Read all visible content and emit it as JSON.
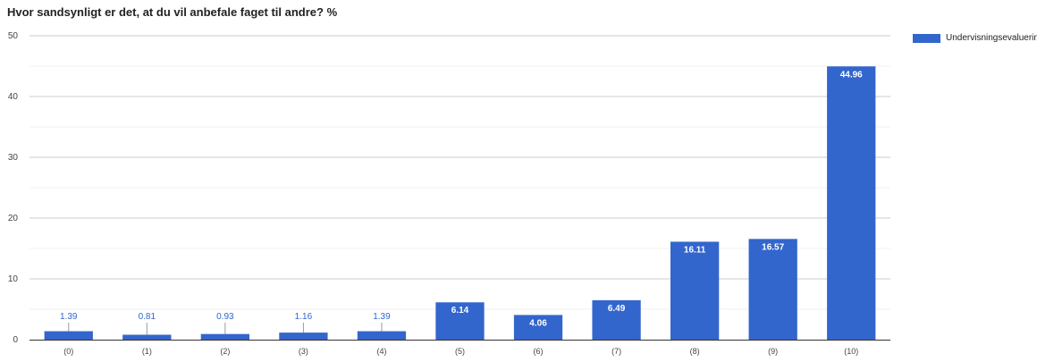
{
  "chart_data": {
    "type": "bar",
    "title": "Hvor sandsynligt er det, at du vil anbefale faget til andre? %",
    "categories": [
      "(0)",
      "(1)",
      "(2)",
      "(3)",
      "(4)",
      "(5)",
      "(6)",
      "(7)",
      "(8)",
      "(9)",
      "(10)"
    ],
    "series": [
      {
        "name": "Undervisningsevaluering",
        "color": "#3366cc",
        "values": [
          1.39,
          0.81,
          0.93,
          1.16,
          1.39,
          6.14,
          4.06,
          6.49,
          16.11,
          16.57,
          44.96
        ],
        "labels": [
          "1.39",
          "0.81",
          "0.93",
          "1.16",
          "1.39",
          "6.14",
          "4.06",
          "6.49",
          "16.11",
          "16.57",
          "44.96"
        ]
      }
    ],
    "ylim": [
      0,
      50
    ],
    "yticks": [
      "0",
      "10",
      "20",
      "30",
      "40",
      "50"
    ],
    "grid": true,
    "legend_position": "right"
  }
}
